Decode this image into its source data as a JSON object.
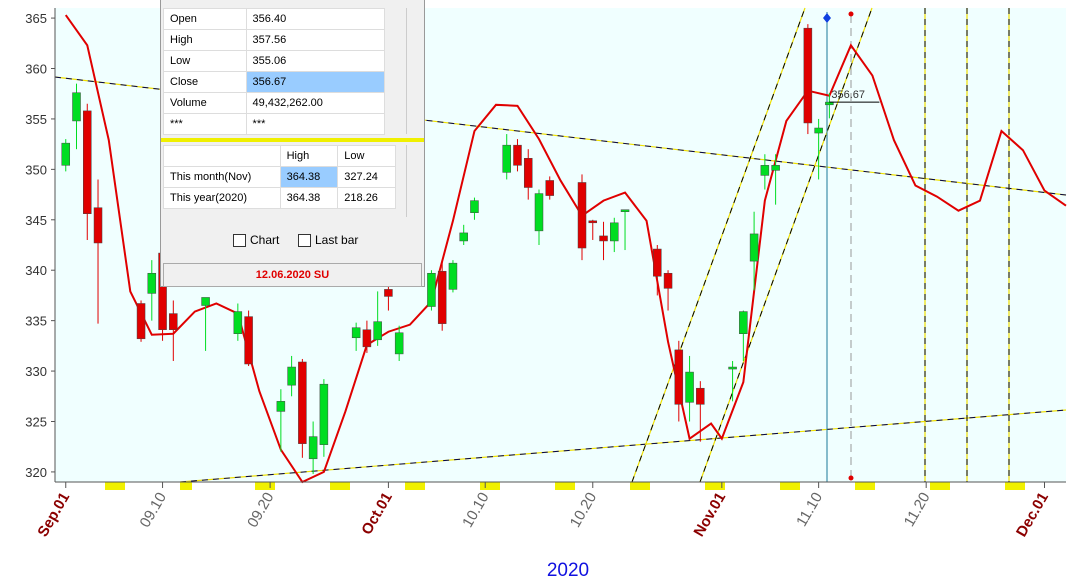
{
  "chart_data": {
    "type": "candlestick",
    "xlabel": "2020",
    "up_color": "#00dd22",
    "down_color": "#e00000",
    "x": [
      "2020-09-01",
      "2020-09-02",
      "2020-09-03",
      "2020-09-04",
      "2020-09-08",
      "2020-09-09",
      "2020-09-10",
      "2020-09-11",
      "2020-09-14",
      "2020-09-17",
      "2020-09-18",
      "2020-09-21",
      "2020-09-22",
      "2020-09-23",
      "2020-09-24",
      "2020-09-25",
      "2020-09-28",
      "2020-09-29",
      "2020-09-30",
      "2020-10-01",
      "2020-10-02",
      "2020-10-05",
      "2020-10-06",
      "2020-10-07",
      "2020-10-08",
      "2020-10-09",
      "2020-10-12",
      "2020-10-13",
      "2020-10-14",
      "2020-10-15",
      "2020-10-16",
      "2020-10-19",
      "2020-10-20",
      "2020-10-21",
      "2020-10-22",
      "2020-10-23",
      "2020-10-26",
      "2020-10-27",
      "2020-10-28",
      "2020-10-29",
      "2020-10-30",
      "2020-11-02",
      "2020-11-03",
      "2020-11-04",
      "2020-11-05",
      "2020-11-06",
      "2020-11-09",
      "2020-11-10",
      "2020-11-11"
    ],
    "open": [
      350.4,
      354.8,
      355.8,
      346.2,
      336.7,
      337.7,
      341.7,
      335.7,
      336.5,
      333.7,
      335.4,
      326,
      328.6,
      330.9,
      321.3,
      322.7,
      333.3,
      334.1,
      333.1,
      338.1,
      331.7,
      336.4,
      339.9,
      338.1,
      342.9,
      345.7,
      349.7,
      352.4,
      351.1,
      343.9,
      348.9,
      348.7,
      344.9,
      343.4,
      342.9,
      345.8,
      342.1,
      339.7,
      332.1,
      326.9,
      328.3,
      330.2,
      333.7,
      340.9,
      349.4,
      349.9,
      364,
      353.6,
      356.4
    ],
    "high": [
      353,
      358.5,
      356.5,
      349,
      337,
      341,
      344.5,
      337,
      337,
      336.7,
      336,
      328.2,
      331.5,
      331.2,
      325,
      329.2,
      334.8,
      335,
      337.9,
      339,
      334.5,
      340,
      341,
      341,
      344.5,
      347.2,
      353.5,
      353,
      352,
      348,
      349.3,
      349.5,
      345,
      344.8,
      345.2,
      346,
      342.5,
      340,
      333,
      331.5,
      329,
      331,
      336,
      345.8,
      351.5,
      351.5,
      364.4,
      355,
      357.56
    ],
    "low": [
      349.8,
      352,
      343,
      334.7,
      332.9,
      335,
      333,
      331,
      332,
      333,
      330.5,
      322,
      327.5,
      321.4,
      319.8,
      321.5,
      332,
      331.8,
      332.5,
      336,
      331,
      336,
      334,
      337.8,
      342.5,
      345,
      349,
      349.8,
      347,
      342.5,
      347,
      341,
      343,
      341,
      341.8,
      342,
      337.5,
      336,
      325,
      325,
      323,
      327,
      331,
      338,
      348,
      346.5,
      353.5,
      349,
      355.06
    ],
    "close": [
      352.6,
      357.6,
      345.6,
      342.7,
      333.2,
      339.7,
      334.1,
      334.1,
      337.3,
      335.9,
      330.7,
      327,
      330.4,
      322.8,
      323.5,
      328.7,
      334.3,
      332.4,
      334.9,
      337.4,
      333.8,
      339.7,
      334.7,
      340.7,
      343.7,
      346.9,
      352.4,
      350.4,
      348.2,
      347.6,
      347.4,
      342.2,
      344.7,
      342.9,
      344.7,
      346,
      339.4,
      338.2,
      326.7,
      329.9,
      326.7,
      330.4,
      335.9,
      343.6,
      350.4,
      350.4,
      354.6,
      354.1,
      356.67
    ],
    "line": {
      "color": "#e00000",
      "x": [
        "2020-09-01",
        "2020-09-03",
        "2020-09-05",
        "2020-09-07",
        "2020-09-09",
        "2020-09-11",
        "2020-09-13",
        "2020-09-15",
        "2020-09-17",
        "2020-09-19",
        "2020-09-21",
        "2020-09-23",
        "2020-09-25",
        "2020-09-27",
        "2020-09-29",
        "2020-10-01",
        "2020-10-03",
        "2020-10-05",
        "2020-10-07",
        "2020-10-09",
        "2020-10-11",
        "2020-10-13",
        "2020-10-15",
        "2020-10-17",
        "2020-10-19",
        "2020-10-21",
        "2020-10-23",
        "2020-10-25",
        "2020-10-27",
        "2020-10-29",
        "2020-10-31",
        "2020-11-01",
        "2020-11-03",
        "2020-11-05",
        "2020-11-07",
        "2020-11-09",
        "2020-11-11",
        "2020-11-13",
        "2020-11-15",
        "2020-11-17",
        "2020-11-19",
        "2020-11-21",
        "2020-11-23",
        "2020-11-25",
        "2020-11-27",
        "2020-11-29",
        "2020-12-01",
        "2020-12-03"
      ],
      "values": [
        365.3,
        362.3,
        352.9,
        337.9,
        333.6,
        333.7,
        335.9,
        336.7,
        335.7,
        328,
        322.2,
        319,
        320,
        326,
        332.6,
        333.9,
        334.6,
        336.9,
        344.9,
        353.8,
        356.4,
        356.3,
        353,
        348.9,
        345.4,
        346.9,
        347.7,
        344.9,
        332.9,
        323.3,
        324.8,
        323.3,
        328.9,
        346.9,
        354.8,
        357.8,
        357.3,
        362.3,
        359.3,
        352.9,
        348.4,
        347.3,
        345.9,
        346.9,
        353.8,
        351.9,
        347.9,
        346.4
      ]
    },
    "last_price": 356.67,
    "last_price_label": "356.67",
    "xlim": [
      "2020-08-31",
      "2020-12-03"
    ],
    "xticks": [
      {
        "value": "2020-09-01",
        "label": "Sep.01"
      },
      {
        "value": "2020-09-10",
        "label": "09.10"
      },
      {
        "value": "2020-09-20",
        "label": "09.20"
      },
      {
        "value": "2020-10-01",
        "label": "Oct.01"
      },
      {
        "value": "2020-10-10",
        "label": "10.10"
      },
      {
        "value": "2020-10-20",
        "label": "10.20"
      },
      {
        "value": "2020-11-01",
        "label": "Nov.01"
      },
      {
        "value": "2020-11-10",
        "label": "11.10"
      },
      {
        "value": "2020-11-20",
        "label": "11.20"
      },
      {
        "value": "2020-12-01",
        "label": "Dec.01"
      }
    ],
    "ylim": [
      319,
      366
    ],
    "yticks": [
      320,
      325,
      330,
      335,
      340,
      345,
      350,
      355,
      360,
      365
    ]
  },
  "data_window": {
    "rows": [
      [
        "Open",
        "356.40"
      ],
      [
        "High",
        "357.56"
      ],
      [
        "Low",
        "355.06"
      ],
      [
        "Close",
        "356.67"
      ],
      [
        "Volume",
        "49,432,262.00"
      ],
      [
        "***",
        "***"
      ]
    ],
    "stats_header": [
      "High",
      "Low"
    ],
    "stats_rows": [
      [
        "This month(Nov)",
        "364.38",
        "327.24"
      ],
      [
        "This year(2020)",
        "364.38",
        "218.26"
      ]
    ],
    "checkboxes": [
      "Chart",
      "Last bar"
    ],
    "status": "12.06.2020 SU"
  }
}
